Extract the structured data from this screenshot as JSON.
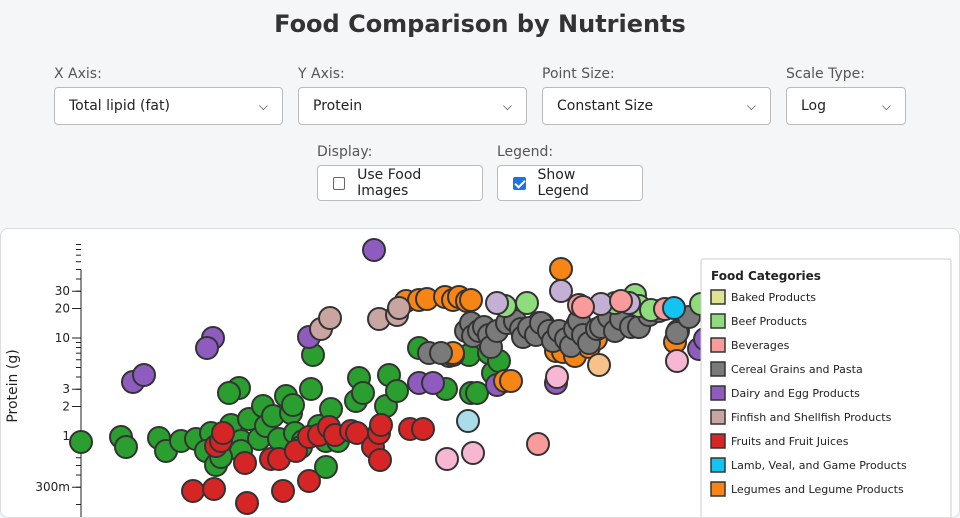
{
  "title": "Food Comparison by Nutrients",
  "controls": {
    "x_axis": {
      "label": "X Axis:",
      "value": "Total lipid (fat)"
    },
    "y_axis": {
      "label": "Y Axis:",
      "value": "Protein"
    },
    "point_size": {
      "label": "Point Size:",
      "value": "Constant Size"
    },
    "scale_type": {
      "label": "Scale Type:",
      "value": "Log"
    },
    "display": {
      "label": "Display:",
      "option": "Use Food Images",
      "checked": false
    },
    "legend": {
      "label": "Legend:",
      "option": "Show Legend",
      "checked": true
    }
  },
  "chart_data": {
    "type": "scatter",
    "title": "",
    "xlabel": "",
    "ylabel": "Protein (g)",
    "y_scale": "log",
    "y_ticks": [
      {
        "value": 0.3,
        "label": "300m"
      },
      {
        "value": 1,
        "label": "1"
      },
      {
        "value": 2,
        "label": "2"
      },
      {
        "value": 3,
        "label": "3"
      },
      {
        "value": 10,
        "label": "10"
      },
      {
        "value": 20,
        "label": "20"
      },
      {
        "value": 30,
        "label": "30"
      }
    ],
    "legend": {
      "title": "Food Categories",
      "position": "top-right",
      "entries": [
        {
          "name": "Baked Products",
          "color": "#dde38f"
        },
        {
          "name": "Beef Products",
          "color": "#8fdc7c"
        },
        {
          "name": "Beverages",
          "color": "#f99b9b"
        },
        {
          "name": "Cereal Grains and Pasta",
          "color": "#7a7a7a"
        },
        {
          "name": "Dairy and Egg Products",
          "color": "#8e5cbf"
        },
        {
          "name": "Finfish and Shellfish Products",
          "color": "#c8a5a0"
        },
        {
          "name": "Fruits and Fruit Juices",
          "color": "#d62525"
        },
        {
          "name": "Lamb, Veal, and Game Products",
          "color": "#13c3f2"
        },
        {
          "name": "Legumes and Legume Products",
          "color": "#f68515"
        }
      ]
    },
    "extra_colors": {
      "Vegetables": "#2a9e2f",
      "Light purple": "#c5b0d5",
      "Light pink": "#f7b6d2",
      "Light blue": "#a8dde9",
      "Light orange": "#f9c08a"
    },
    "series": [
      {
        "color": "#2a9e2f",
        "points": [
          [
            80,
            441
          ],
          [
            120,
            436
          ],
          [
            125,
            446
          ],
          [
            158,
            437
          ],
          [
            165,
            450
          ],
          [
            180,
            440
          ],
          [
            195,
            438
          ],
          [
            210,
            432
          ],
          [
            205,
            450
          ],
          [
            215,
            464
          ],
          [
            230,
            424
          ],
          [
            240,
            440
          ],
          [
            248,
            418
          ],
          [
            258,
            438
          ],
          [
            262,
            405
          ],
          [
            265,
            425
          ],
          [
            272,
            415
          ],
          [
            278,
            438
          ],
          [
            285,
            395
          ],
          [
            290,
            412
          ],
          [
            294,
            432
          ],
          [
            302,
            440
          ],
          [
            310,
            388
          ],
          [
            312,
            354
          ],
          [
            318,
            425
          ],
          [
            325,
            440
          ],
          [
            325,
            466
          ],
          [
            330,
            408
          ],
          [
            238,
            387
          ],
          [
            228,
            392
          ],
          [
            292,
            404
          ],
          [
            337,
            440
          ],
          [
            355,
            400
          ],
          [
            358,
            377
          ],
          [
            362,
            392
          ],
          [
            385,
            405
          ],
          [
            388,
            374
          ],
          [
            396,
            390
          ],
          [
            418,
            347
          ],
          [
            445,
            388
          ],
          [
            448,
            355
          ],
          [
            468,
            354
          ],
          [
            470,
            392
          ],
          [
            476,
            392
          ],
          [
            488,
            352
          ],
          [
            492,
            372
          ],
          [
            498,
            360
          ],
          [
            300,
            446
          ],
          [
            240,
            450
          ],
          [
            220,
            456
          ]
        ]
      },
      {
        "color": "#8e5cbf",
        "points": [
          [
            373,
            249
          ],
          [
            212,
            337
          ],
          [
            206,
            347
          ],
          [
            132,
            381
          ],
          [
            143,
            374
          ],
          [
            308,
            336
          ],
          [
            418,
            382
          ],
          [
            432,
            382
          ],
          [
            452,
            354
          ],
          [
            496,
            384
          ],
          [
            555,
            382
          ],
          [
            576,
            324
          ],
          [
            580,
            342
          ],
          [
            698,
            348
          ],
          [
            704,
            338
          ]
        ]
      },
      {
        "color": "#f68515",
        "points": [
          [
            405,
            300
          ],
          [
            418,
            299
          ],
          [
            426,
            298
          ],
          [
            444,
            296
          ],
          [
            452,
            299
          ],
          [
            458,
            296
          ],
          [
            466,
            300
          ],
          [
            470,
            299
          ],
          [
            504,
            380
          ],
          [
            510,
            380
          ],
          [
            452,
            352
          ],
          [
            555,
            350
          ],
          [
            562,
            351
          ],
          [
            560,
            268
          ],
          [
            574,
            355
          ],
          [
            588,
            346
          ],
          [
            640,
            307
          ],
          [
            674,
            341
          ],
          [
            677,
            330
          ],
          [
            595,
            338
          ],
          [
            538,
            322
          ],
          [
            542,
            323
          ]
        ]
      },
      {
        "color": "#7a7a7a",
        "points": [
          [
            428,
            352
          ],
          [
            440,
            352
          ],
          [
            465,
            330
          ],
          [
            470,
            322
          ],
          [
            472,
            335
          ],
          [
            478,
            330
          ],
          [
            483,
            326
          ],
          [
            488,
            334
          ],
          [
            490,
            346
          ],
          [
            496,
            330
          ],
          [
            506,
            322
          ],
          [
            514,
            320
          ],
          [
            520,
            328
          ],
          [
            522,
            336
          ],
          [
            528,
            327
          ],
          [
            535,
            334
          ],
          [
            540,
            322
          ],
          [
            548,
            330
          ],
          [
            552,
            340
          ],
          [
            558,
            330
          ],
          [
            565,
            338
          ],
          [
            570,
            345
          ],
          [
            574,
            328
          ],
          [
            578,
            320
          ],
          [
            582,
            334
          ],
          [
            588,
            342
          ],
          [
            596,
            328
          ],
          [
            600,
            326
          ],
          [
            608,
            316
          ],
          [
            614,
            330
          ],
          [
            620,
            318
          ],
          [
            630,
            326
          ],
          [
            638,
            326
          ],
          [
            648,
            314
          ],
          [
            658,
            310
          ],
          [
            676,
            332
          ],
          [
            688,
            316
          ]
        ]
      },
      {
        "color": "#c8a5a0",
        "points": [
          [
            320,
            328
          ],
          [
            329,
            317
          ],
          [
            378,
            318
          ],
          [
            396,
            314
          ],
          [
            398,
            307
          ]
        ]
      },
      {
        "color": "#d62525",
        "points": [
          [
            192,
            490
          ],
          [
            213,
            488
          ],
          [
            215,
            445
          ],
          [
            220,
            440
          ],
          [
            222,
            432
          ],
          [
            244,
            462
          ],
          [
            246,
            502
          ],
          [
            270,
            458
          ],
          [
            278,
            458
          ],
          [
            282,
            490
          ],
          [
            295,
            450
          ],
          [
            308,
            436
          ],
          [
            318,
            434
          ],
          [
            328,
            426
          ],
          [
            334,
            434
          ],
          [
            350,
            430
          ],
          [
            356,
            432
          ],
          [
            372,
            446
          ],
          [
            378,
            432
          ],
          [
            379,
            459
          ],
          [
            380,
            424
          ],
          [
            409,
            428
          ],
          [
            422,
            428
          ],
          [
            308,
            480
          ]
        ]
      },
      {
        "color": "#8fdc7c",
        "points": [
          [
            504,
            305
          ],
          [
            526,
            302
          ],
          [
            614,
            302
          ],
          [
            634,
            294
          ],
          [
            638,
            305
          ],
          [
            650,
            309
          ],
          [
            700,
            303
          ]
        ]
      },
      {
        "color": "#c5b0d5",
        "points": [
          [
            496,
            302
          ],
          [
            560,
            290
          ],
          [
            600,
            303
          ],
          [
            628,
            302
          ]
        ]
      },
      {
        "color": "#f99b9b",
        "points": [
          [
            537,
            443
          ],
          [
            578,
            304
          ],
          [
            582,
            306
          ],
          [
            620,
            300
          ],
          [
            664,
            308
          ]
        ]
      },
      {
        "color": "#f7b6d2",
        "points": [
          [
            446,
            458
          ],
          [
            472,
            452
          ],
          [
            556,
            376
          ],
          [
            676,
            360
          ]
        ]
      },
      {
        "color": "#a8dde9",
        "points": [
          [
            467,
            420
          ]
        ]
      },
      {
        "color": "#f9c08a",
        "points": [
          [
            598,
            364
          ]
        ]
      },
      {
        "color": "#13c3f2",
        "points": [
          [
            673,
            307
          ]
        ]
      }
    ]
  }
}
